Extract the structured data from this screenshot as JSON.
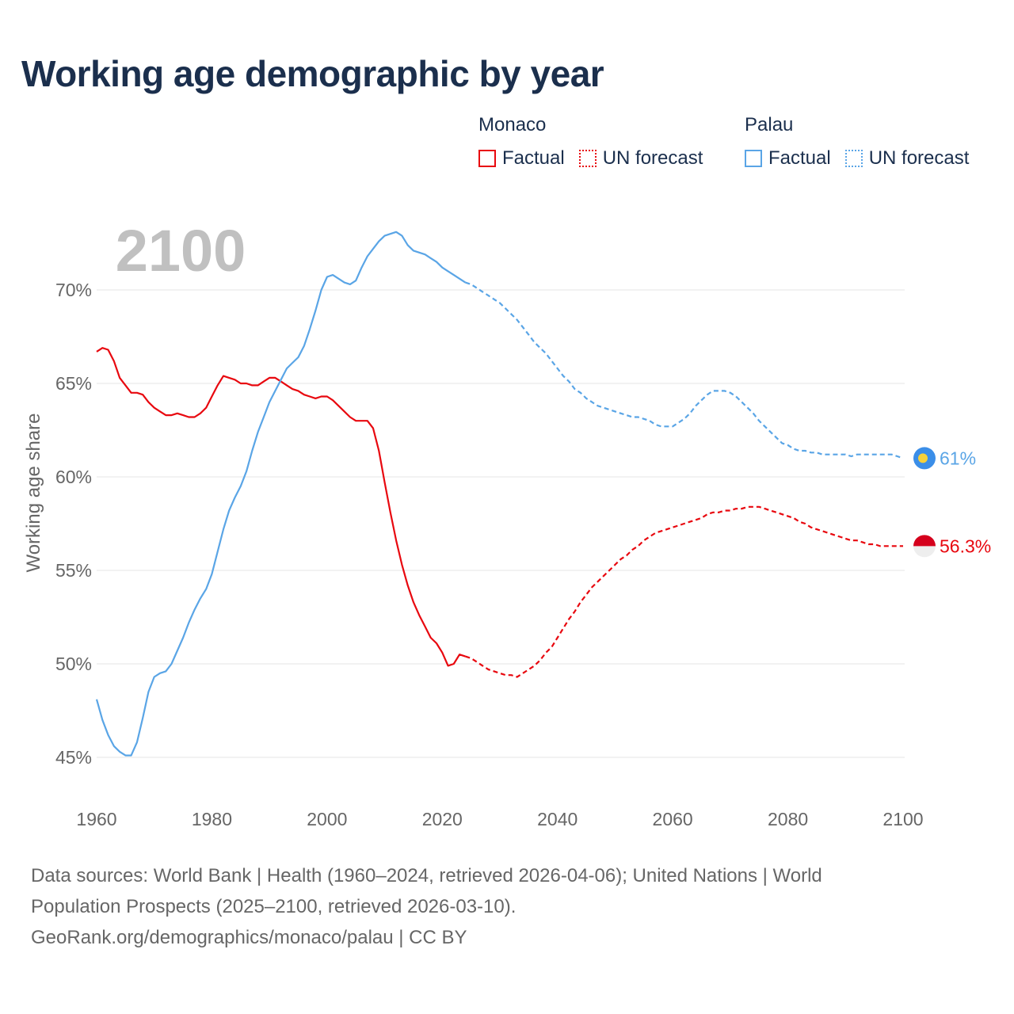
{
  "title": "Working age demographic by year",
  "legend": {
    "groups": [
      {
        "name": "Monaco",
        "color": "#e8080f",
        "items": [
          {
            "label": "Factual",
            "style": "solid"
          },
          {
            "label": "UN forecast",
            "style": "dotted"
          }
        ]
      },
      {
        "name": "Palau",
        "color": "#5aa5e6",
        "items": [
          {
            "label": "Factual",
            "style": "solid"
          },
          {
            "label": "UN forecast",
            "style": "dotted"
          }
        ]
      }
    ]
  },
  "year_overlay": "2100",
  "footer": {
    "line1": "Data sources: World Bank | Health (1960–2024, retrieved 2026-04-06); United Nations | World",
    "line2": "Population Prospects (2025–2100, retrieved 2026-03-10).",
    "line3": "GeoRank.org/demographics/monaco/palau | CC BY"
  },
  "chart_data": {
    "type": "line",
    "title": "Working age demographic by year",
    "xlabel": "",
    "ylabel": "Working age share",
    "xlim": [
      1960,
      2100
    ],
    "ylim": [
      43,
      73
    ],
    "x_ticks": [
      1960,
      1980,
      2000,
      2020,
      2040,
      2060,
      2080,
      2100
    ],
    "y_ticks": [
      45,
      50,
      55,
      60,
      65,
      70
    ],
    "grid": true,
    "forecast_start_year": 2024,
    "series": [
      {
        "name": "Monaco",
        "color": "#e8080f",
        "end_label": "56.3%",
        "points": [
          [
            1960,
            66.7
          ],
          [
            1961,
            66.9
          ],
          [
            1962,
            66.8
          ],
          [
            1963,
            66.2
          ],
          [
            1964,
            65.3
          ],
          [
            1965,
            64.9
          ],
          [
            1966,
            64.5
          ],
          [
            1967,
            64.5
          ],
          [
            1968,
            64.4
          ],
          [
            1969,
            64.0
          ],
          [
            1970,
            63.7
          ],
          [
            1971,
            63.5
          ],
          [
            1972,
            63.3
          ],
          [
            1973,
            63.3
          ],
          [
            1974,
            63.4
          ],
          [
            1975,
            63.3
          ],
          [
            1976,
            63.2
          ],
          [
            1977,
            63.2
          ],
          [
            1978,
            63.4
          ],
          [
            1979,
            63.7
          ],
          [
            1980,
            64.3
          ],
          [
            1981,
            64.9
          ],
          [
            1982,
            65.4
          ],
          [
            1983,
            65.3
          ],
          [
            1984,
            65.2
          ],
          [
            1985,
            65.0
          ],
          [
            1986,
            65.0
          ],
          [
            1987,
            64.9
          ],
          [
            1988,
            64.9
          ],
          [
            1989,
            65.1
          ],
          [
            1990,
            65.3
          ],
          [
            1991,
            65.3
          ],
          [
            1992,
            65.1
          ],
          [
            1993,
            64.9
          ],
          [
            1994,
            64.7
          ],
          [
            1995,
            64.6
          ],
          [
            1996,
            64.4
          ],
          [
            1997,
            64.3
          ],
          [
            1998,
            64.2
          ],
          [
            1999,
            64.3
          ],
          [
            2000,
            64.3
          ],
          [
            2001,
            64.1
          ],
          [
            2002,
            63.8
          ],
          [
            2003,
            63.5
          ],
          [
            2004,
            63.2
          ],
          [
            2005,
            63.0
          ],
          [
            2006,
            63.0
          ],
          [
            2007,
            63.0
          ],
          [
            2008,
            62.6
          ],
          [
            2009,
            61.4
          ],
          [
            2010,
            59.7
          ],
          [
            2011,
            58.1
          ],
          [
            2012,
            56.6
          ],
          [
            2013,
            55.3
          ],
          [
            2014,
            54.2
          ],
          [
            2015,
            53.3
          ],
          [
            2016,
            52.6
          ],
          [
            2017,
            52.0
          ],
          [
            2018,
            51.4
          ],
          [
            2019,
            51.1
          ],
          [
            2020,
            50.6
          ],
          [
            2021,
            49.9
          ],
          [
            2022,
            50.0
          ],
          [
            2023,
            50.5
          ],
          [
            2024,
            50.4
          ],
          [
            2025,
            50.3
          ],
          [
            2026,
            50.1
          ],
          [
            2027,
            49.9
          ],
          [
            2028,
            49.7
          ],
          [
            2029,
            49.6
          ],
          [
            2030,
            49.5
          ],
          [
            2031,
            49.4
          ],
          [
            2032,
            49.4
          ],
          [
            2033,
            49.3
          ],
          [
            2034,
            49.5
          ],
          [
            2035,
            49.7
          ],
          [
            2036,
            49.9
          ],
          [
            2037,
            50.2
          ],
          [
            2038,
            50.6
          ],
          [
            2039,
            50.9
          ],
          [
            2040,
            51.4
          ],
          [
            2041,
            51.9
          ],
          [
            2042,
            52.4
          ],
          [
            2043,
            52.8
          ],
          [
            2044,
            53.3
          ],
          [
            2045,
            53.7
          ],
          [
            2046,
            54.1
          ],
          [
            2047,
            54.4
          ],
          [
            2048,
            54.7
          ],
          [
            2049,
            55.0
          ],
          [
            2050,
            55.3
          ],
          [
            2051,
            55.6
          ],
          [
            2052,
            55.8
          ],
          [
            2053,
            56.1
          ],
          [
            2054,
            56.3
          ],
          [
            2055,
            56.6
          ],
          [
            2056,
            56.8
          ],
          [
            2057,
            57.0
          ],
          [
            2058,
            57.1
          ],
          [
            2059,
            57.2
          ],
          [
            2060,
            57.3
          ],
          [
            2061,
            57.4
          ],
          [
            2062,
            57.5
          ],
          [
            2063,
            57.6
          ],
          [
            2064,
            57.7
          ],
          [
            2065,
            57.8
          ],
          [
            2066,
            58.0
          ],
          [
            2067,
            58.1
          ],
          [
            2068,
            58.1
          ],
          [
            2069,
            58.2
          ],
          [
            2070,
            58.2
          ],
          [
            2071,
            58.3
          ],
          [
            2072,
            58.3
          ],
          [
            2073,
            58.4
          ],
          [
            2074,
            58.4
          ],
          [
            2075,
            58.4
          ],
          [
            2076,
            58.3
          ],
          [
            2077,
            58.2
          ],
          [
            2078,
            58.1
          ],
          [
            2079,
            58.0
          ],
          [
            2080,
            57.9
          ],
          [
            2081,
            57.8
          ],
          [
            2082,
            57.6
          ],
          [
            2083,
            57.5
          ],
          [
            2084,
            57.3
          ],
          [
            2085,
            57.2
          ],
          [
            2086,
            57.1
          ],
          [
            2087,
            57.0
          ],
          [
            2088,
            56.9
          ],
          [
            2089,
            56.8
          ],
          [
            2090,
            56.7
          ],
          [
            2091,
            56.6
          ],
          [
            2092,
            56.6
          ],
          [
            2093,
            56.5
          ],
          [
            2094,
            56.4
          ],
          [
            2095,
            56.4
          ],
          [
            2096,
            56.3
          ],
          [
            2097,
            56.3
          ],
          [
            2098,
            56.3
          ],
          [
            2099,
            56.3
          ],
          [
            2100,
            56.3
          ]
        ]
      },
      {
        "name": "Palau",
        "color": "#5aa5e6",
        "end_label": "61%",
        "points": [
          [
            1960,
            48.1
          ],
          [
            1961,
            47.0
          ],
          [
            1962,
            46.2
          ],
          [
            1963,
            45.6
          ],
          [
            1964,
            45.3
          ],
          [
            1965,
            45.1
          ],
          [
            1966,
            45.1
          ],
          [
            1967,
            45.8
          ],
          [
            1968,
            47.1
          ],
          [
            1969,
            48.5
          ],
          [
            1970,
            49.3
          ],
          [
            1971,
            49.5
          ],
          [
            1972,
            49.6
          ],
          [
            1973,
            50.0
          ],
          [
            1974,
            50.7
          ],
          [
            1975,
            51.4
          ],
          [
            1976,
            52.2
          ],
          [
            1977,
            52.9
          ],
          [
            1978,
            53.5
          ],
          [
            1979,
            54.0
          ],
          [
            1980,
            54.8
          ],
          [
            1981,
            56.0
          ],
          [
            1982,
            57.2
          ],
          [
            1983,
            58.2
          ],
          [
            1984,
            58.9
          ],
          [
            1985,
            59.5
          ],
          [
            1986,
            60.3
          ],
          [
            1987,
            61.4
          ],
          [
            1988,
            62.4
          ],
          [
            1989,
            63.2
          ],
          [
            1990,
            64.0
          ],
          [
            1991,
            64.6
          ],
          [
            1992,
            65.2
          ],
          [
            1993,
            65.8
          ],
          [
            1994,
            66.1
          ],
          [
            1995,
            66.4
          ],
          [
            1996,
            67.0
          ],
          [
            1997,
            67.9
          ],
          [
            1998,
            68.9
          ],
          [
            1999,
            70.0
          ],
          [
            2000,
            70.7
          ],
          [
            2001,
            70.8
          ],
          [
            2002,
            70.6
          ],
          [
            2003,
            70.4
          ],
          [
            2004,
            70.3
          ],
          [
            2005,
            70.5
          ],
          [
            2006,
            71.2
          ],
          [
            2007,
            71.8
          ],
          [
            2008,
            72.2
          ],
          [
            2009,
            72.6
          ],
          [
            2010,
            72.9
          ],
          [
            2011,
            73.0
          ],
          [
            2012,
            73.1
          ],
          [
            2013,
            72.9
          ],
          [
            2014,
            72.4
          ],
          [
            2015,
            72.1
          ],
          [
            2016,
            72.0
          ],
          [
            2017,
            71.9
          ],
          [
            2018,
            71.7
          ],
          [
            2019,
            71.5
          ],
          [
            2020,
            71.2
          ],
          [
            2021,
            71.0
          ],
          [
            2022,
            70.8
          ],
          [
            2023,
            70.6
          ],
          [
            2024,
            70.4
          ],
          [
            2025,
            70.3
          ],
          [
            2026,
            70.1
          ],
          [
            2027,
            69.9
          ],
          [
            2028,
            69.7
          ],
          [
            2029,
            69.5
          ],
          [
            2030,
            69.3
          ],
          [
            2031,
            69.0
          ],
          [
            2032,
            68.7
          ],
          [
            2033,
            68.4
          ],
          [
            2034,
            68.0
          ],
          [
            2035,
            67.6
          ],
          [
            2036,
            67.2
          ],
          [
            2037,
            66.9
          ],
          [
            2038,
            66.6
          ],
          [
            2039,
            66.2
          ],
          [
            2040,
            65.8
          ],
          [
            2041,
            65.4
          ],
          [
            2042,
            65.1
          ],
          [
            2043,
            64.7
          ],
          [
            2044,
            64.5
          ],
          [
            2045,
            64.2
          ],
          [
            2046,
            64.0
          ],
          [
            2047,
            63.8
          ],
          [
            2048,
            63.7
          ],
          [
            2049,
            63.6
          ],
          [
            2050,
            63.5
          ],
          [
            2051,
            63.4
          ],
          [
            2052,
            63.3
          ],
          [
            2053,
            63.2
          ],
          [
            2054,
            63.2
          ],
          [
            2055,
            63.1
          ],
          [
            2056,
            63.0
          ],
          [
            2057,
            62.8
          ],
          [
            2058,
            62.7
          ],
          [
            2059,
            62.7
          ],
          [
            2060,
            62.7
          ],
          [
            2061,
            62.9
          ],
          [
            2062,
            63.1
          ],
          [
            2063,
            63.4
          ],
          [
            2064,
            63.8
          ],
          [
            2065,
            64.1
          ],
          [
            2066,
            64.4
          ],
          [
            2067,
            64.6
          ],
          [
            2068,
            64.6
          ],
          [
            2069,
            64.6
          ],
          [
            2070,
            64.5
          ],
          [
            2071,
            64.3
          ],
          [
            2072,
            64.0
          ],
          [
            2073,
            63.7
          ],
          [
            2074,
            63.4
          ],
          [
            2075,
            63.0
          ],
          [
            2076,
            62.7
          ],
          [
            2077,
            62.4
          ],
          [
            2078,
            62.1
          ],
          [
            2079,
            61.8
          ],
          [
            2080,
            61.7
          ],
          [
            2081,
            61.5
          ],
          [
            2082,
            61.4
          ],
          [
            2083,
            61.4
          ],
          [
            2084,
            61.3
          ],
          [
            2085,
            61.3
          ],
          [
            2086,
            61.2
          ],
          [
            2087,
            61.2
          ],
          [
            2088,
            61.2
          ],
          [
            2089,
            61.2
          ],
          [
            2090,
            61.2
          ],
          [
            2091,
            61.1
          ],
          [
            2092,
            61.2
          ],
          [
            2093,
            61.2
          ],
          [
            2094,
            61.2
          ],
          [
            2095,
            61.2
          ],
          [
            2096,
            61.2
          ],
          [
            2097,
            61.2
          ],
          [
            2098,
            61.2
          ],
          [
            2099,
            61.1
          ],
          [
            2100,
            61.0
          ]
        ]
      }
    ]
  }
}
